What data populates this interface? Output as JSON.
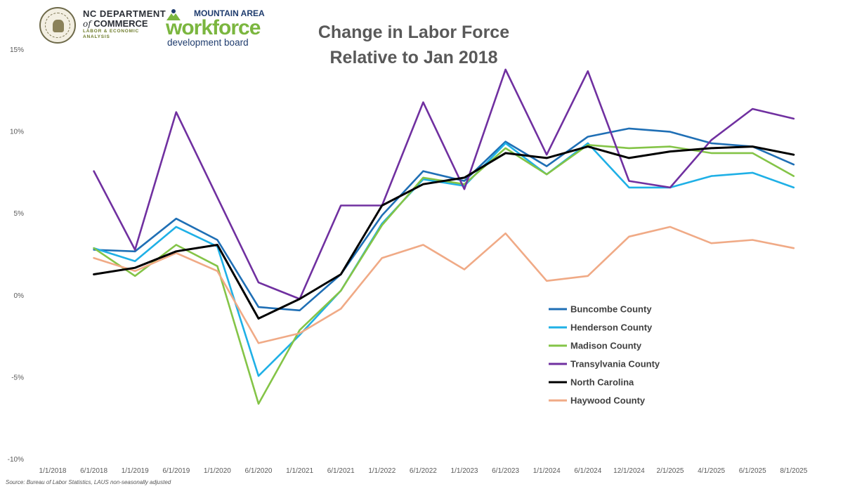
{
  "logos": {
    "nc_commerce": {
      "line1": "NC DEPARTMENT",
      "line2_italic": "of",
      "line2": "COMMERCE",
      "line3": "LABOR & ECONOMIC ANALYSIS"
    },
    "mawdb": {
      "line1": "MOUNTAIN AREA",
      "line2": "workforce",
      "line3": "development board"
    }
  },
  "source_note": "Source: Bureau of Labor Statistics, LAUS non-seasonally adjusted",
  "chart_data": {
    "type": "line",
    "title_lines": [
      "Change in Labor Force",
      "Relative to Jan 2018"
    ],
    "xlabel": "",
    "ylabel": "",
    "x": [
      "1/1/2018",
      "6/1/2018",
      "1/1/2019",
      "6/1/2019",
      "1/1/2020",
      "6/1/2020",
      "1/1/2021",
      "6/1/2021",
      "1/1/2022",
      "6/1/2022",
      "1/1/2023",
      "6/1/2023",
      "1/1/2024",
      "6/1/2024",
      "12/1/2024",
      "2/1/2025",
      "4/1/2025",
      "6/1/2025",
      "8/1/2025"
    ],
    "ylim": [
      -10,
      15
    ],
    "yticks": [
      15,
      10,
      5,
      0,
      -5,
      -10
    ],
    "ytick_labels": [
      "15%",
      "10%",
      "5%",
      "0%",
      "-5%",
      "-10%"
    ],
    "grid": false,
    "legend_position": "lower-right",
    "series": [
      {
        "name": "Buncombe County",
        "color": "#1f6fb5",
        "values": [
          null,
          2.8,
          2.7,
          4.7,
          3.4,
          -0.7,
          -0.9,
          1.3,
          4.9,
          7.6,
          7.0,
          9.4,
          7.9,
          9.7,
          10.2,
          10.0,
          9.3,
          9.1,
          8.0
        ]
      },
      {
        "name": "Henderson County",
        "color": "#1fb0e6",
        "values": [
          null,
          2.9,
          2.1,
          4.2,
          3.0,
          -4.9,
          -2.4,
          0.3,
          4.4,
          7.1,
          6.7,
          9.3,
          7.4,
          9.3,
          6.6,
          6.6,
          7.3,
          7.5,
          6.6
        ]
      },
      {
        "name": "Madison County",
        "color": "#84c447",
        "values": [
          null,
          2.9,
          1.2,
          3.1,
          1.8,
          -6.6,
          -2.1,
          0.3,
          4.3,
          7.2,
          6.8,
          9.0,
          7.4,
          9.2,
          9.0,
          9.1,
          8.7,
          8.7,
          7.3
        ]
      },
      {
        "name": "Transylvania County",
        "color": "#7030a0",
        "values": [
          null,
          7.6,
          2.8,
          11.2,
          6.0,
          0.8,
          -0.2,
          5.5,
          5.5,
          11.8,
          6.5,
          13.8,
          8.6,
          13.7,
          7.0,
          6.6,
          9.5,
          11.4,
          10.8
        ]
      },
      {
        "name": "North Carolina",
        "color": "#000000",
        "values": [
          null,
          1.3,
          1.7,
          2.7,
          3.1,
          -1.4,
          -0.2,
          1.3,
          5.5,
          6.8,
          7.2,
          8.7,
          8.4,
          9.1,
          8.4,
          8.8,
          9.0,
          9.1,
          8.6
        ]
      },
      {
        "name": "Haywood County",
        "color": "#f0aa86",
        "values": [
          null,
          2.3,
          1.5,
          2.6,
          1.5,
          -2.9,
          -2.3,
          -0.8,
          2.3,
          3.1,
          1.6,
          3.8,
          0.9,
          1.2,
          3.6,
          4.2,
          3.2,
          3.4,
          2.9
        ]
      }
    ]
  }
}
